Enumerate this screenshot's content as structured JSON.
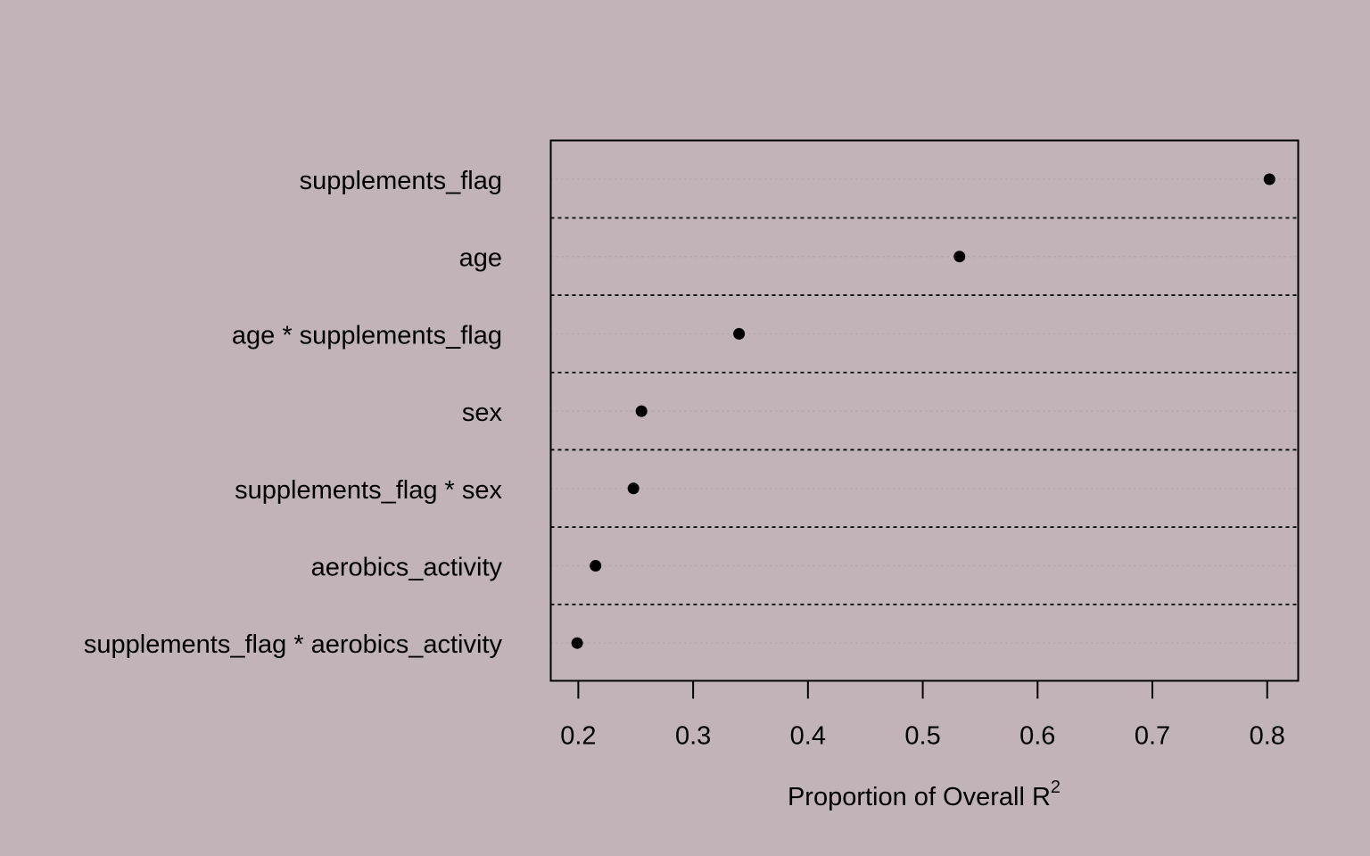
{
  "colors": {
    "background": "#c1b3b7",
    "ink": "#000000",
    "guide": "#b2a5a9"
  },
  "chart_data": {
    "type": "scatter",
    "subtype": "dotchart",
    "xlabel": "Proportion of Overall R",
    "xlabel_superscript": "2",
    "xlim": [
      0.176,
      0.827
    ],
    "xticks": [
      0.2,
      0.3,
      0.4,
      0.5,
      0.6,
      0.7,
      0.8
    ],
    "xtick_labels": [
      "0.2",
      "0.3",
      "0.4",
      "0.5",
      "0.6",
      "0.7",
      "0.8"
    ],
    "grid": "dotted horizontal guide per row; dashed separators between rows",
    "categories": [
      "supplements_flag",
      "age",
      "age * supplements_flag",
      "sex",
      "supplements_flag * sex",
      "aerobics_activity",
      "supplements_flag * aerobics_activity"
    ],
    "values": [
      0.802,
      0.532,
      0.34,
      0.255,
      0.248,
      0.215,
      0.199
    ]
  }
}
